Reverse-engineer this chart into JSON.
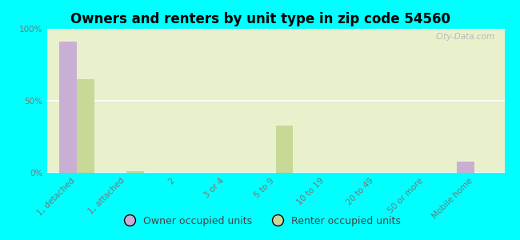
{
  "title": "Owners and renters by unit type in zip code 54560",
  "categories": [
    "1, detached",
    "1, attached",
    "2",
    "3 or 4",
    "5 to 9",
    "10 to 19",
    "20 to 49",
    "50 or more",
    "Mobile home"
  ],
  "owner_values": [
    91,
    0,
    0,
    0,
    0,
    0,
    0,
    0,
    8
  ],
  "renter_values": [
    65,
    1,
    0,
    0,
    33,
    0,
    0,
    0,
    0
  ],
  "owner_color": "#c9afd4",
  "renter_color": "#c8d896",
  "background_color": "#00ffff",
  "plot_bg_color": "#e8f0cc",
  "watermark": "City-Data.com",
  "ylabel_ticks": [
    "0%",
    "50%",
    "100%"
  ],
  "ytick_values": [
    0,
    50,
    100
  ],
  "ylim": [
    0,
    100
  ],
  "bar_width": 0.35,
  "legend_owner": "Owner occupied units",
  "legend_renter": "Renter occupied units",
  "title_fontsize": 12,
  "tick_fontsize": 7.5,
  "legend_fontsize": 9
}
